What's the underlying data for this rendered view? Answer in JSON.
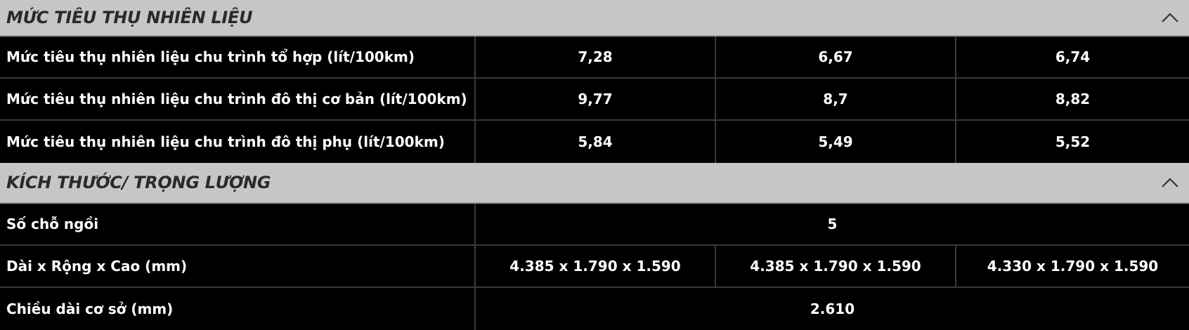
{
  "fuel": {
    "title": "MỨC TIÊU THỤ NHIÊN LIỆU",
    "rows": [
      {
        "label": "Mức tiêu thụ nhiên liệu chu trình tổ hợp (lít/100km)",
        "values": [
          "7,28",
          "6,67",
          "6,74"
        ]
      },
      {
        "label": "Mức tiêu thụ nhiên liệu chu trình đô thị cơ bản (lít/100km)",
        "values": [
          "9,77",
          "8,7",
          "8,82"
        ]
      },
      {
        "label": "Mức tiêu thụ nhiên liệu chu trình đô thị phụ (lít/100km)",
        "values": [
          "5,84",
          "5,49",
          "5,52"
        ]
      }
    ]
  },
  "dimensions": {
    "title": "KÍCH THƯỚC/ TRỌNG LƯỢNG",
    "seats": {
      "label": "Số chỗ ngồi",
      "value": "5"
    },
    "size": {
      "label": "Dài x Rộng x Cao (mm)",
      "values": [
        "4.385 x 1.790 x 1.590",
        "4.385 x 1.790 x 1.590",
        "4.330 x 1.790 x 1.590"
      ]
    },
    "wheelbase": {
      "label": "Chiều dài cơ sở (mm)",
      "value": "2.610"
    }
  },
  "icons": {
    "collapse": "chevron-up-icon"
  },
  "colors": {
    "header_bg": "#c6c6c6",
    "body_bg": "#000000",
    "text": "#ffffff"
  }
}
